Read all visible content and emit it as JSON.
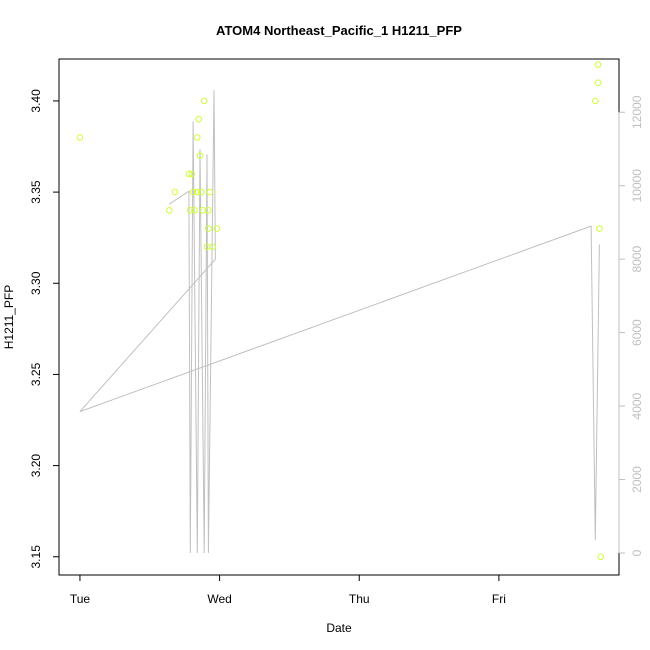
{
  "chart_data": {
    "type": "scatter",
    "title": "ATOM4 Northeast_Pacific_1 H1211_PFP",
    "xlabel": "Date",
    "ylabel": "H1211_PFP",
    "x_ticks": [
      {
        "label": "Tue",
        "value": 0
      },
      {
        "label": "Wed",
        "value": 1
      },
      {
        "label": "Thu",
        "value": 2
      },
      {
        "label": "Fri",
        "value": 3
      }
    ],
    "y_ticks": [
      "3.15",
      "3.20",
      "3.25",
      "3.30",
      "3.35",
      "3.40"
    ],
    "y2_ticks": [
      "0",
      "2000",
      "4000",
      "6000",
      "8000",
      "10000",
      "12000"
    ],
    "xlim": [
      -0.15,
      3.86
    ],
    "ylim": [
      3.14,
      3.423
    ],
    "y2lim": [
      -600,
      13450
    ],
    "colors": {
      "points": "#ccff33",
      "line": "#c0c0c0",
      "y2_axis": "#bfbfbf",
      "axis": "#000000"
    },
    "series": [
      {
        "points": [
          {
            "x": 0.0,
            "y": 3.38
          },
          {
            "x": 0.64,
            "y": 3.34
          },
          {
            "x": 0.68,
            "y": 3.35
          },
          {
            "x": 0.78,
            "y": 3.36
          },
          {
            "x": 0.79,
            "y": 3.34
          },
          {
            "x": 0.8,
            "y": 3.36
          },
          {
            "x": 0.81,
            "y": 3.35
          },
          {
            "x": 0.82,
            "y": 3.34
          },
          {
            "x": 0.84,
            "y": 3.35
          },
          {
            "x": 0.84,
            "y": 3.38
          },
          {
            "x": 0.85,
            "y": 3.39
          },
          {
            "x": 0.86,
            "y": 3.37
          },
          {
            "x": 0.87,
            "y": 3.35
          },
          {
            "x": 0.88,
            "y": 3.34
          },
          {
            "x": 0.89,
            "y": 3.4
          },
          {
            "x": 0.91,
            "y": 3.32
          },
          {
            "x": 0.92,
            "y": 3.34
          },
          {
            "x": 0.92,
            "y": 3.33
          },
          {
            "x": 0.93,
            "y": 3.35
          },
          {
            "x": 0.95,
            "y": 3.32
          },
          {
            "x": 0.98,
            "y": 3.33
          },
          {
            "x": 3.69,
            "y": 3.4
          },
          {
            "x": 3.71,
            "y": 3.42
          },
          {
            "x": 3.71,
            "y": 3.41
          },
          {
            "x": 3.72,
            "y": 3.33
          },
          {
            "x": 3.73,
            "y": 3.15
          }
        ]
      },
      {
        "axis": "y2",
        "line": [
          {
            "x": 0.64,
            "y": 9500
          },
          {
            "x": 0.78,
            "y": 9850
          },
          {
            "x": 0.79,
            "y": 0
          },
          {
            "x": 0.81,
            "y": 11750
          },
          {
            "x": 0.84,
            "y": 0
          },
          {
            "x": 0.86,
            "y": 11000
          },
          {
            "x": 0.89,
            "y": 0
          },
          {
            "x": 0.91,
            "y": 10850
          },
          {
            "x": 0.92,
            "y": 0
          },
          {
            "x": 0.96,
            "y": 12600
          },
          {
            "x": 0.97,
            "y": 8000
          },
          {
            "x": 0.0,
            "y": 3850
          },
          {
            "x": 3.66,
            "y": 8900
          },
          {
            "x": 3.69,
            "y": 350
          },
          {
            "x": 3.72,
            "y": 8400
          }
        ]
      }
    ]
  }
}
